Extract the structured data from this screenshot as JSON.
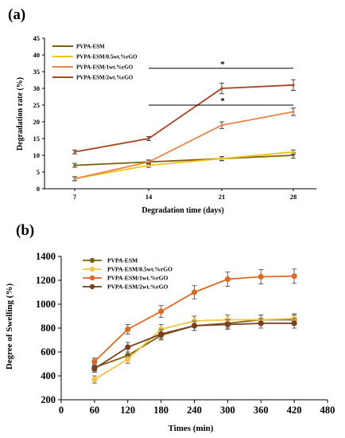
{
  "chart_data": [
    {
      "panel_label": "(a)",
      "type": "line",
      "xlabel": "Degradation time (days)",
      "ylabel": "Degradation rate (%)",
      "x": [
        7,
        14,
        21,
        28
      ],
      "x_ticks": [
        "7",
        "14",
        "21",
        "28"
      ],
      "ylim": [
        0,
        45
      ],
      "y_ticks": [
        0,
        5,
        10,
        15,
        20,
        25,
        30,
        35,
        40,
        45
      ],
      "legend_position": "top-left",
      "grid": false,
      "series": [
        {
          "name": "PVPA-ESM",
          "color": "#7a6210",
          "values": [
            7,
            8,
            9,
            10
          ],
          "errors": [
            0.6,
            0.6,
            0.6,
            0.9
          ]
        },
        {
          "name": "PVPA-ESM/0.5wt.%rGO",
          "color": "#f2c21b",
          "values": [
            3,
            7,
            9,
            11
          ],
          "errors": [
            0.6,
            0.6,
            0.6,
            0.6
          ]
        },
        {
          "name": "PVPA-ESM/1wt.%rGO",
          "color": "#e8854a",
          "values": [
            3,
            8,
            19,
            23
          ],
          "errors": [
            0.6,
            0.6,
            1.0,
            1.1
          ]
        },
        {
          "name": "PVPA-ESM/2wt.%rGO",
          "color": "#a8441e",
          "values": [
            11,
            15,
            30,
            31
          ],
          "errors": [
            0.6,
            0.6,
            1.6,
            1.6
          ]
        }
      ],
      "annotations": [
        {
          "text": "*",
          "x_from": 14,
          "x_to": 28,
          "y": 36
        },
        {
          "text": "*",
          "x_from": 14,
          "x_to": 28,
          "y": 25
        }
      ]
    },
    {
      "panel_label": "(b)",
      "type": "line",
      "xlabel": "Times (min)",
      "ylabel": "Degree of Swelling (%)",
      "x": [
        60,
        120,
        180,
        240,
        300,
        360,
        420
      ],
      "xlim": [
        0,
        480
      ],
      "x_ticks": [
        0,
        60,
        120,
        180,
        240,
        300,
        360,
        420,
        480
      ],
      "ylim": [
        200,
        1400
      ],
      "y_ticks": [
        200,
        400,
        600,
        800,
        1000,
        1200,
        1400
      ],
      "legend_position": "top-left",
      "grid": false,
      "series": [
        {
          "name": "PVPA-ESM",
          "color": "#7a6210",
          "values": [
            470,
            570,
            740,
            820,
            840,
            870,
            870
          ],
          "errors": [
            30,
            30,
            40,
            40,
            40,
            40,
            40
          ]
        },
        {
          "name": "PVPA-ESM/0.5wt.%rGO",
          "color": "#f5c445",
          "values": [
            370,
            540,
            790,
            860,
            870,
            870,
            880
          ],
          "errors": [
            30,
            35,
            40,
            40,
            40,
            40,
            40
          ]
        },
        {
          "name": "PVPA-ESM/1wt.%rGO",
          "color": "#dd6a22",
          "values": [
            520,
            790,
            940,
            1100,
            1210,
            1230,
            1235
          ],
          "errors": [
            30,
            40,
            50,
            55,
            60,
            60,
            60
          ]
        },
        {
          "name": "PVPA-ESM/2wt.%rGO",
          "color": "#7a3f1e",
          "values": [
            460,
            640,
            750,
            820,
            830,
            840,
            840
          ],
          "errors": [
            30,
            40,
            40,
            40,
            40,
            40,
            40
          ]
        }
      ]
    }
  ]
}
